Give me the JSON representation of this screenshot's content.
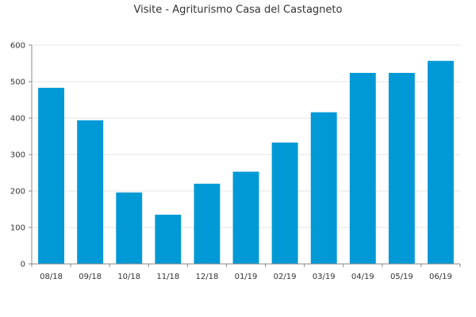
{
  "chart_data": {
    "type": "bar",
    "title": "Visite - Agriturismo Casa del Castagneto",
    "xlabel": "",
    "ylabel": "",
    "categories": [
      "08/18",
      "09/18",
      "10/18",
      "11/18",
      "12/18",
      "01/19",
      "02/19",
      "03/19",
      "04/19",
      "05/19",
      "06/19"
    ],
    "values": [
      483,
      394,
      196,
      135,
      220,
      253,
      333,
      416,
      524,
      524,
      557
    ],
    "ylim": [
      0,
      600
    ],
    "yticks": [
      "0",
      "100",
      "200",
      "300",
      "400",
      "500",
      "600"
    ],
    "grid": true,
    "legend": "none",
    "bar_color": "#0099d6"
  }
}
